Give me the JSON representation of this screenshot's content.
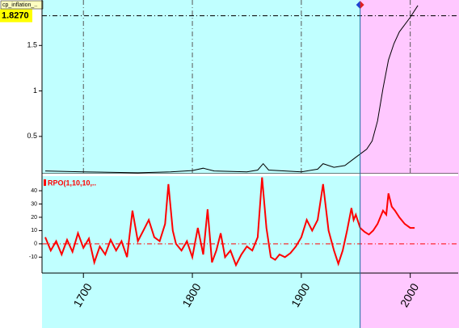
{
  "chart_data": [
    {
      "type": "line",
      "title": "cp_inflation_..",
      "xlim": [
        1662,
        2044
      ],
      "xticks": [
        1700,
        1800,
        1900,
        2000
      ],
      "ylim": [
        0.09,
        2.0
      ],
      "yticks": [
        0.5,
        1,
        1.5
      ],
      "reference": {
        "value": 1.827,
        "label": "1.8270"
      },
      "highlight_from": 1954,
      "background": "#c0ffff",
      "highlight_color": "#ffc8ff",
      "grid": true,
      "series": [
        {
          "color": "#000000",
          "x": [
            1665,
            1700,
            1750,
            1780,
            1800,
            1810,
            1820,
            1850,
            1860,
            1865,
            1870,
            1900,
            1915,
            1920,
            1930,
            1940,
            1950,
            1960,
            1965,
            1970,
            1975,
            1980,
            1985,
            1990,
            2000,
            2007
          ],
          "values": [
            0.12,
            0.11,
            0.1,
            0.11,
            0.125,
            0.15,
            0.12,
            0.11,
            0.13,
            0.2,
            0.13,
            0.11,
            0.14,
            0.2,
            0.16,
            0.18,
            0.27,
            0.36,
            0.45,
            0.67,
            1.03,
            1.34,
            1.52,
            1.65,
            1.81,
            1.94
          ]
        }
      ]
    },
    {
      "type": "line",
      "title": "RPO(1,10,10,..",
      "xlim": [
        1662,
        2044
      ],
      "xticks": [
        1700,
        1800,
        1900,
        2000
      ],
      "ylim": [
        -22,
        51
      ],
      "yticks": [
        -10,
        0,
        10,
        20,
        30,
        40
      ],
      "baseline": 0,
      "highlight_from": 1954,
      "background": "#c0ffff",
      "highlight_color": "#ffc8ff",
      "series": [
        {
          "color": "#ff0000",
          "x": [
            1665,
            1670,
            1675,
            1680,
            1685,
            1690,
            1695,
            1700,
            1705,
            1710,
            1715,
            1720,
            1725,
            1730,
            1735,
            1740,
            1745,
            1750,
            1755,
            1760,
            1765,
            1770,
            1775,
            1778,
            1782,
            1785,
            1790,
            1795,
            1800,
            1805,
            1810,
            1814,
            1818,
            1822,
            1826,
            1830,
            1835,
            1840,
            1845,
            1850,
            1855,
            1860,
            1864,
            1868,
            1872,
            1876,
            1880,
            1885,
            1890,
            1895,
            1900,
            1905,
            1910,
            1915,
            1920,
            1925,
            1930,
            1934,
            1938,
            1942,
            1946,
            1948,
            1950,
            1954,
            1958,
            1962,
            1966,
            1970,
            1975,
            1978,
            1980,
            1983,
            1986,
            1990,
            1995,
            2000,
            2004
          ],
          "values": [
            5,
            -5,
            2,
            -8,
            3,
            -6,
            8,
            -3,
            4,
            -14,
            -2,
            -8,
            3,
            -5,
            2,
            -10,
            25,
            2,
            10,
            18,
            5,
            2,
            15,
            45,
            10,
            0,
            -5,
            2,
            -10,
            12,
            -8,
            26,
            -14,
            -5,
            8,
            -10,
            -5,
            -16,
            -8,
            -2,
            -5,
            5,
            50,
            12,
            -10,
            -12,
            -8,
            -10,
            -7,
            -2,
            5,
            18,
            10,
            18,
            45,
            10,
            -5,
            -15,
            -5,
            10,
            27,
            18,
            22,
            12,
            9,
            7,
            10,
            15,
            25,
            22,
            38,
            28,
            25,
            20,
            15,
            12,
            12
          ]
        }
      ]
    }
  ]
}
